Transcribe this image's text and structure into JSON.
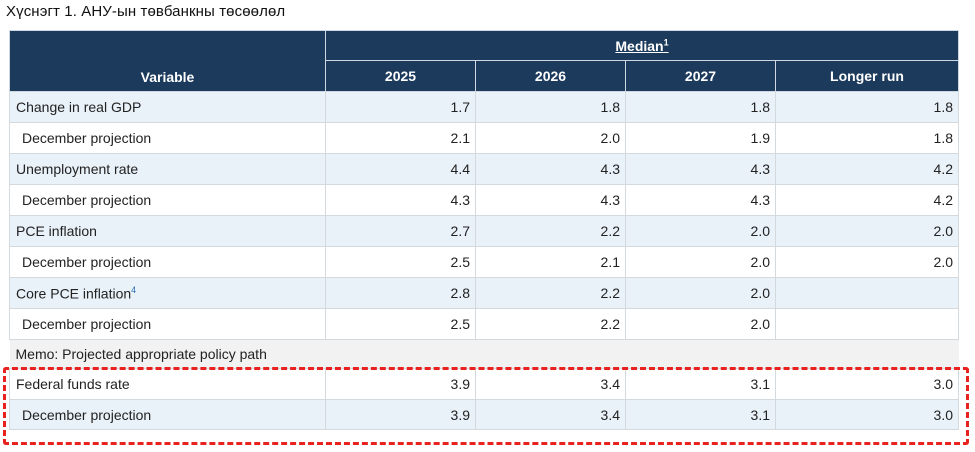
{
  "caption": "Хүснэгт 1. АНУ-ын төвбанкны төсөөлөл",
  "header": {
    "variable": "Variable",
    "median": "Median",
    "median_note": "1",
    "years": [
      "2025",
      "2026",
      "2027",
      "Longer run"
    ]
  },
  "rows": [
    {
      "label": "Change in real GDP",
      "values": [
        "1.7",
        "1.8",
        "1.8",
        "1.8"
      ]
    },
    {
      "label": "December projection",
      "values": [
        "2.1",
        "2.0",
        "1.9",
        "1.8"
      ]
    },
    {
      "label": "Unemployment rate",
      "values": [
        "4.4",
        "4.3",
        "4.3",
        "4.2"
      ]
    },
    {
      "label": "December projection",
      "values": [
        "4.3",
        "4.3",
        "4.3",
        "4.2"
      ]
    },
    {
      "label": "PCE inflation",
      "values": [
        "2.7",
        "2.2",
        "2.0",
        "2.0"
      ]
    },
    {
      "label": "December projection",
      "values": [
        "2.5",
        "2.1",
        "2.0",
        "2.0"
      ]
    },
    {
      "label": "Core PCE inflation",
      "note": "4",
      "values": [
        "2.8",
        "2.2",
        "2.0",
        ""
      ]
    },
    {
      "label": "December projection",
      "values": [
        "2.5",
        "2.2",
        "2.0",
        ""
      ]
    }
  ],
  "memo": "Memo: Projected appropriate policy path",
  "policy_rows": [
    {
      "label": "Federal funds rate",
      "values": [
        "3.9",
        "3.4",
        "3.1",
        "3.0"
      ]
    },
    {
      "label": "December projection",
      "values": [
        "3.9",
        "3.4",
        "3.1",
        "3.0"
      ]
    }
  ],
  "colors": {
    "header_bg": "#1b3a5c",
    "row_shade": "#e9f1f9",
    "highlight": "#e8231f"
  }
}
